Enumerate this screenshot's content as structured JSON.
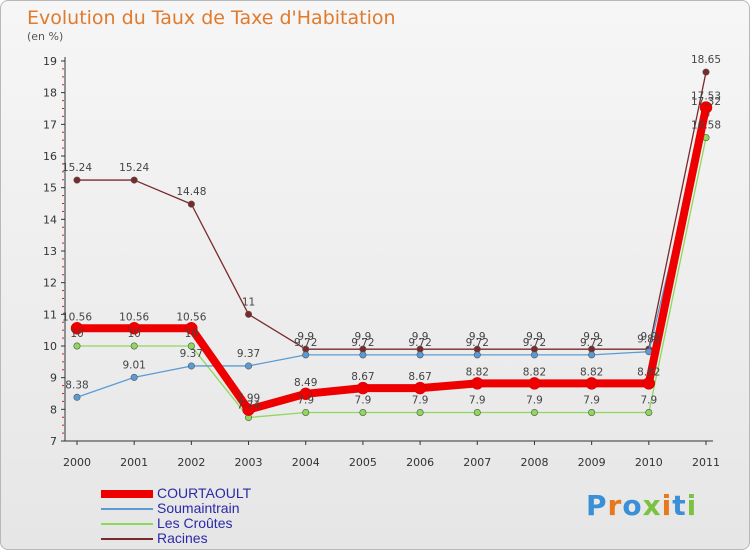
{
  "header": {
    "title": "Evolution du Taux de Taxe d'Habitation",
    "subtitle": "(en %)"
  },
  "brand": {
    "name": "Proxiti",
    "letters": [
      "P",
      "r",
      "o",
      "x",
      "i",
      "t",
      "i"
    ],
    "colors": [
      "#3a8fd6",
      "#e8781e",
      "#3a8fd6",
      "#7cc242",
      "#e8781e",
      "#3a8fd6",
      "#7cc242"
    ]
  },
  "chart_data": {
    "type": "line",
    "title": "Evolution du Taux de Taxe d'Habitation",
    "ylabel": "(en %)",
    "xlabel": "",
    "categories": [
      "2000",
      "2001",
      "2002",
      "2003",
      "2004",
      "2005",
      "2006",
      "2007",
      "2008",
      "2009",
      "2010",
      "2011"
    ],
    "ylim": [
      7,
      19
    ],
    "yticks": [
      "7",
      "8",
      "9",
      "10",
      "11",
      "12",
      "13",
      "14",
      "15",
      "16",
      "17",
      "18",
      "19"
    ],
    "grid": false,
    "legend_position": "bottom-left",
    "series": [
      {
        "name": "COURTAOULT",
        "color": "#ee0000",
        "values": [
          10.56,
          10.56,
          10.56,
          7.99,
          8.49,
          8.67,
          8.67,
          8.82,
          8.82,
          8.82,
          8.82,
          17.53
        ],
        "labels": [
          "10.56",
          "10.56",
          "10.56",
          "7.99",
          "8.49",
          "8.67",
          "8.67",
          "8.82",
          "8.82",
          "8.82",
          "8.82",
          "17.53"
        ]
      },
      {
        "name": "Soumaintrain",
        "color": "#5b9bd5",
        "values": [
          8.38,
          9.01,
          9.37,
          9.37,
          9.72,
          9.72,
          9.72,
          9.72,
          9.72,
          9.72,
          9.82,
          17.32
        ],
        "labels": [
          "8.38",
          "9.01",
          "9.37",
          "9.37",
          "9.72",
          "9.72",
          "9.72",
          "9.72",
          "9.72",
          "9.72",
          "9.82",
          "17.32"
        ]
      },
      {
        "name": "Les Croûtes",
        "color": "#8ed85a",
        "values": [
          10,
          10,
          10,
          7.74,
          7.9,
          7.9,
          7.9,
          7.9,
          7.9,
          7.9,
          7.9,
          16.58
        ],
        "labels": [
          "10",
          "10",
          "10",
          "7.74",
          "7.9",
          "7.9",
          "7.9",
          "7.9",
          "7.9",
          "7.9",
          "7.9",
          "16.58"
        ]
      },
      {
        "name": "Racines",
        "color": "#7a2a2a",
        "values": [
          15.24,
          15.24,
          14.48,
          11,
          9.9,
          9.9,
          9.9,
          9.9,
          9.9,
          9.9,
          9.9,
          18.65
        ],
        "labels": [
          "15.24",
          "15.24",
          "14.48",
          "11",
          "9.9",
          "9.9",
          "9.9",
          "9.9",
          "9.9",
          "9.9",
          "9.9",
          "18.65"
        ]
      }
    ]
  }
}
